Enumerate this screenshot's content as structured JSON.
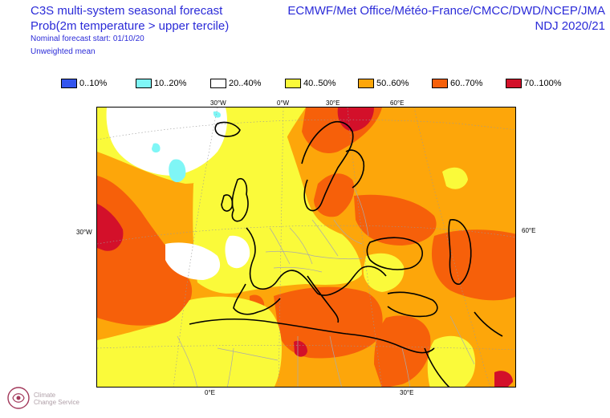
{
  "header": {
    "title": "C3S multi-system seasonal forecast",
    "subtitle": "Prob(2m temperature > upper tercile)",
    "start": "Nominal forecast start: 01/10/20",
    "mean": "Unweighted mean",
    "systems": "ECMWF/Met Office/Météo-France/CMCC/DWD/NCEP/JMA",
    "season": "NDJ 2020/21"
  },
  "legend": [
    {
      "label": "0..10%",
      "color": "#3355ee"
    },
    {
      "label": "10..20%",
      "color": "#7ff6f6"
    },
    {
      "label": "20..40%",
      "color": "#ffffff"
    },
    {
      "label": "40..50%",
      "color": "#fafa3a"
    },
    {
      "label": "50..60%",
      "color": "#fda60a"
    },
    {
      "label": "60..70%",
      "color": "#f6600a"
    },
    {
      "label": "70..100%",
      "color": "#d3102a"
    }
  ],
  "axes": {
    "top": [
      "30°W",
      "0°W",
      "30°E",
      "60°E"
    ],
    "bottom": [
      "0°E",
      "30°E"
    ],
    "left": "30°W",
    "right": "60°E"
  },
  "logo": {
    "line1": "Climate",
    "line2": "Change Service"
  }
}
